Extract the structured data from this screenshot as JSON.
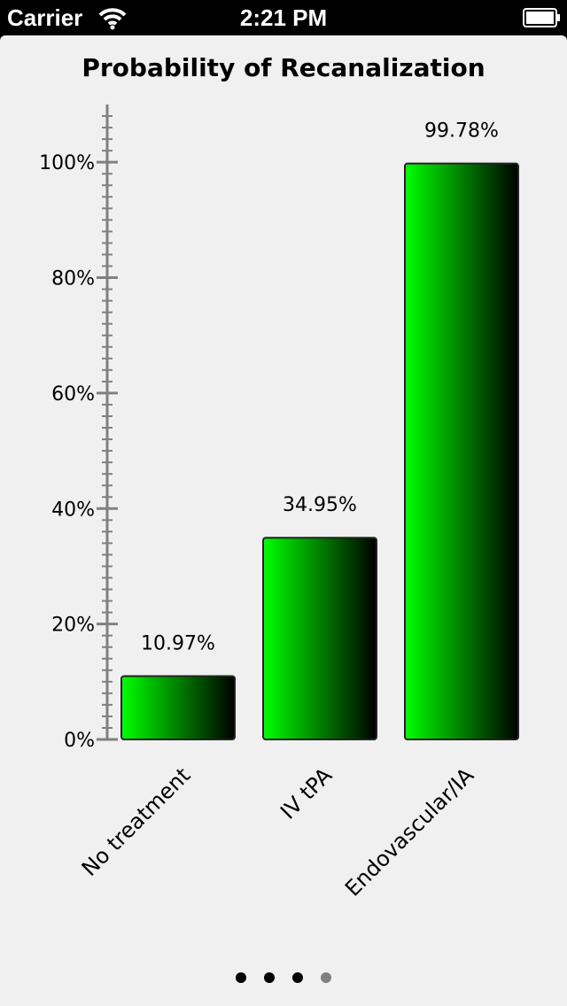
{
  "status_bar": {
    "carrier": "Carrier",
    "time": "2:21 PM",
    "wifi_icon": "wifi-icon",
    "battery_icon": "battery-icon"
  },
  "chart_data": {
    "type": "bar",
    "title": "Probability of Recanalization",
    "categories": [
      "No treatment",
      "IV tPA",
      "Endovascular/IA"
    ],
    "values": [
      10.97,
      34.95,
      99.78
    ],
    "value_labels": [
      "10.97%",
      "34.95%",
      "99.78%"
    ],
    "xlabel": "",
    "ylabel": "",
    "ylim": [
      0,
      110
    ],
    "y_ticks": [
      0,
      20,
      40,
      60,
      80,
      100
    ],
    "y_tick_labels": [
      "0%",
      "20%",
      "40%",
      "60%",
      "80%",
      "100%"
    ],
    "grid": false,
    "bar_gradient": [
      "#00ff00",
      "#000000"
    ]
  },
  "pager": {
    "total": 4,
    "active": [
      0,
      1,
      2
    ],
    "colors": {
      "active": "#000000",
      "inactive": "#808080"
    }
  }
}
